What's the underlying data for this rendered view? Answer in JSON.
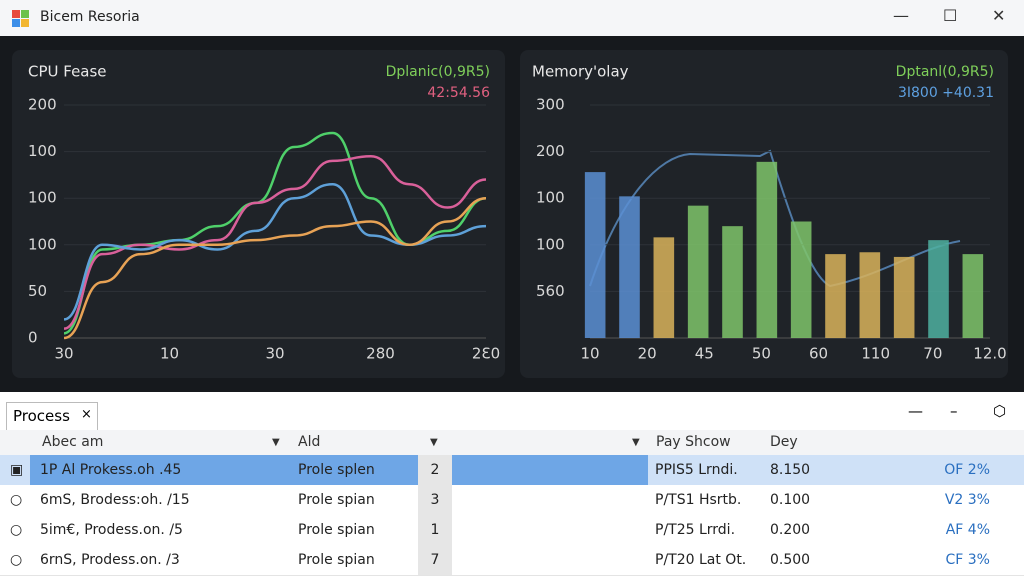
{
  "window": {
    "title": "Bicem Resoria"
  },
  "cpu": {
    "title": "CPU Fease",
    "legend": "Dplanic(0,9R5)",
    "readout": "42:54.56",
    "y_labels": [
      "200",
      "100",
      "100",
      "100",
      "50",
      "0"
    ],
    "x_labels": [
      "30",
      "10",
      "30",
      "280",
      "2Ɛ0"
    ],
    "ylim": [
      0,
      250
    ],
    "series": [
      {
        "color": "#4fd06a",
        "values": [
          5,
          95,
          100,
          105,
          120,
          145,
          205,
          220,
          150,
          100,
          115,
          150
        ]
      },
      {
        "color": "#d9609a",
        "values": [
          10,
          90,
          100,
          95,
          105,
          145,
          160,
          190,
          195,
          165,
          140,
          170
        ]
      },
      {
        "color": "#5ea0d8",
        "values": [
          20,
          100,
          95,
          105,
          95,
          115,
          150,
          165,
          110,
          100,
          110,
          120
        ]
      },
      {
        "color": "#e7a255",
        "values": [
          0,
          60,
          90,
          100,
          100,
          105,
          110,
          120,
          125,
          100,
          125,
          150
        ]
      }
    ]
  },
  "memory": {
    "title": "Memory'olay",
    "legend": "Dptanl(0,9R5)",
    "readout": "3I800 +40.31",
    "y_labels": [
      "300",
      "200",
      "100",
      "100",
      "560"
    ],
    "x_labels": [
      "10",
      "20",
      "45",
      "50",
      "60",
      "110",
      "70",
      "12.0"
    ],
    "ylim": [
      0,
      250
    ],
    "values": [
      178,
      152,
      108,
      142,
      120,
      189,
      125,
      90,
      92,
      87,
      105,
      90
    ],
    "colors": [
      "#5b8fd4",
      "#5b8fd4",
      "#d9b35a",
      "#7fc46a",
      "#7fc46a",
      "#7fc46a",
      "#7fc46a",
      "#d9b35a",
      "#d9b35a",
      "#d9b35a",
      "#4fb0a0",
      "#7fc46a"
    ]
  },
  "tab": {
    "label": "Process",
    "close": "×"
  },
  "table": {
    "headers": [
      "Abec am",
      "Ald",
      "Pay Shcow",
      "Dey"
    ],
    "rows": [
      [
        "1P Al Prokess.oh .45",
        "Prole splen",
        "2",
        "PPIS5 Lrndi.",
        "8.150",
        "OF 2%"
      ],
      [
        "6mS, Brodess:oh. /15",
        "Prole spian",
        "3",
        "P/TS1 Hsrtb.",
        "0.100",
        "V2 3%"
      ],
      [
        "5im€, Prodess.on. /5",
        "Prole spian",
        "1",
        "P/T25 Lrrdi.",
        "0.200",
        "AF 4%"
      ],
      [
        "6rnS, Prodess.on. /3",
        "Prole spian",
        "7",
        "P/T20 Lat Ot.",
        "0.500",
        "CF 3%"
      ]
    ]
  }
}
